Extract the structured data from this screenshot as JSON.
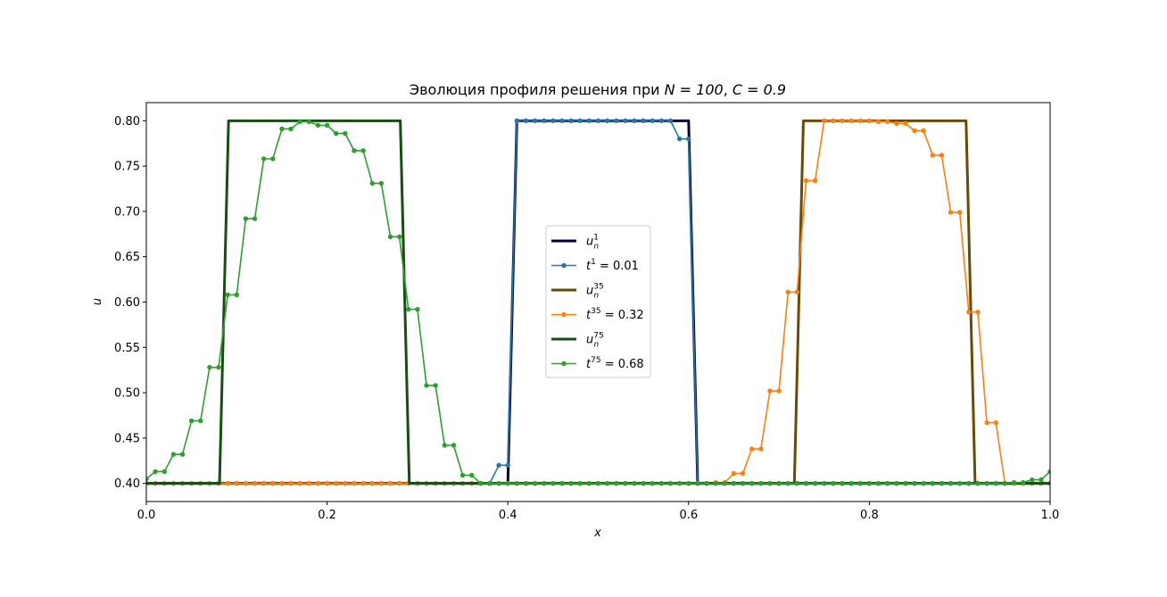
{
  "chart_data": {
    "type": "line",
    "title_prefix": "Эволюция профиля решения при ",
    "title_n": "N = 100",
    "title_sep": ", ",
    "title_c": "C = 0.9",
    "xlabel": "x",
    "ylabel": "u",
    "xlim": [
      0,
      1
    ],
    "ylim": [
      0.38,
      0.82
    ],
    "xticks": [
      0,
      0.2,
      0.4,
      0.6,
      0.8,
      1.0
    ],
    "xtick_labels": [
      "0.0",
      "0.2",
      "0.4",
      "0.6",
      "0.8",
      "1.0"
    ],
    "yticks": [
      0.4,
      0.45,
      0.5,
      0.55,
      0.6,
      0.65,
      0.7,
      0.75,
      0.8
    ],
    "ytick_labels": [
      "0.40",
      "0.45",
      "0.50",
      "0.55",
      "0.60",
      "0.65",
      "0.70",
      "0.75",
      "0.80"
    ],
    "grid": false,
    "legend_position": "center",
    "series": [
      {
        "key": "u1",
        "label_base": "u",
        "label_sub": "n",
        "label_sup": "1",
        "label_rest": "",
        "color": "#000033",
        "marker": false,
        "x": [
          0,
          0.4,
          0.41,
          0.6,
          0.61,
          1.0
        ],
        "y": [
          0.4,
          0.4,
          0.8,
          0.8,
          0.4,
          0.4
        ]
      },
      {
        "key": "t1",
        "label_base": "t",
        "label_sub": "",
        "label_sup": "1",
        "label_rest": " = 0.01",
        "color": "#1f77b4",
        "marker": true,
        "x": [
          0.0,
          0.01,
          0.02,
          0.03,
          0.04,
          0.05,
          0.06,
          0.07,
          0.08,
          0.09,
          0.1,
          0.11,
          0.12,
          0.13,
          0.14,
          0.15,
          0.16,
          0.17,
          0.18,
          0.19,
          0.2,
          0.21,
          0.22,
          0.23,
          0.24,
          0.25,
          0.26,
          0.27,
          0.28,
          0.29,
          0.3,
          0.31,
          0.32,
          0.33,
          0.34,
          0.35,
          0.36,
          0.37,
          0.38,
          0.39,
          0.4,
          0.41,
          0.42,
          0.43,
          0.44,
          0.45,
          0.46,
          0.47,
          0.48,
          0.49,
          0.5,
          0.51,
          0.52,
          0.53,
          0.54,
          0.55,
          0.56,
          0.57,
          0.58,
          0.59,
          0.6,
          0.61,
          0.62,
          0.63,
          0.64,
          0.65,
          0.66,
          0.67,
          0.68,
          0.69,
          0.7,
          0.71,
          0.72,
          0.73,
          0.74,
          0.75,
          0.76,
          0.77,
          0.78,
          0.79,
          0.8,
          0.81,
          0.82,
          0.83,
          0.84,
          0.85,
          0.86,
          0.87,
          0.88,
          0.89,
          0.9,
          0.91,
          0.92,
          0.93,
          0.94,
          0.95,
          0.96,
          0.97,
          0.98,
          0.99,
          1.0
        ],
        "y": [
          0.4,
          0.4,
          0.4,
          0.4,
          0.4,
          0.4,
          0.4,
          0.4,
          0.4,
          0.4,
          0.4,
          0.4,
          0.4,
          0.4,
          0.4,
          0.4,
          0.4,
          0.4,
          0.4,
          0.4,
          0.4,
          0.4,
          0.4,
          0.4,
          0.4,
          0.4,
          0.4,
          0.4,
          0.4,
          0.4,
          0.4,
          0.4,
          0.4,
          0.4,
          0.4,
          0.4,
          0.4,
          0.4,
          0.4,
          0.42,
          0.42,
          0.8,
          0.8,
          0.8,
          0.8,
          0.8,
          0.8,
          0.8,
          0.8,
          0.8,
          0.8,
          0.8,
          0.8,
          0.8,
          0.8,
          0.8,
          0.8,
          0.8,
          0.8,
          0.78,
          0.78,
          0.4,
          0.4,
          0.4,
          0.4,
          0.4,
          0.4,
          0.4,
          0.4,
          0.4,
          0.4,
          0.4,
          0.4,
          0.4,
          0.4,
          0.4,
          0.4,
          0.4,
          0.4,
          0.4,
          0.4,
          0.4,
          0.4,
          0.4,
          0.4,
          0.4,
          0.4,
          0.4,
          0.4,
          0.4,
          0.4,
          0.4,
          0.4,
          0.4,
          0.4,
          0.4,
          0.4,
          0.4,
          0.4,
          0.4,
          0.4
        ]
      },
      {
        "key": "u35",
        "label_base": "u",
        "label_sub": "n",
        "label_sup": "35",
        "label_rest": "",
        "color": "#6b4a05",
        "marker": false,
        "x": [
          0,
          0.717,
          0.727,
          0.907,
          0.917,
          1.0
        ],
        "y": [
          0.4,
          0.4,
          0.8,
          0.8,
          0.4,
          0.4
        ]
      },
      {
        "key": "t35",
        "label_base": "t",
        "label_sub": "",
        "label_sup": "35",
        "label_rest": " = 0.32",
        "color": "#ff7f0e",
        "marker": true,
        "x": [
          0.0,
          0.01,
          0.02,
          0.03,
          0.04,
          0.05,
          0.06,
          0.07,
          0.08,
          0.09,
          0.1,
          0.11,
          0.12,
          0.13,
          0.14,
          0.15,
          0.16,
          0.17,
          0.18,
          0.19,
          0.2,
          0.21,
          0.22,
          0.23,
          0.24,
          0.25,
          0.26,
          0.27,
          0.28,
          0.29,
          0.3,
          0.31,
          0.32,
          0.33,
          0.34,
          0.35,
          0.36,
          0.37,
          0.38,
          0.39,
          0.4,
          0.41,
          0.42,
          0.43,
          0.44,
          0.45,
          0.46,
          0.47,
          0.48,
          0.49,
          0.5,
          0.51,
          0.52,
          0.53,
          0.54,
          0.55,
          0.56,
          0.57,
          0.58,
          0.59,
          0.6,
          0.61,
          0.62,
          0.63,
          0.64,
          0.65,
          0.66,
          0.67,
          0.68,
          0.69,
          0.7,
          0.71,
          0.72,
          0.73,
          0.74,
          0.75,
          0.76,
          0.77,
          0.78,
          0.79,
          0.8,
          0.81,
          0.82,
          0.83,
          0.84,
          0.85,
          0.86,
          0.87,
          0.88,
          0.89,
          0.9,
          0.91,
          0.92,
          0.93,
          0.94,
          0.95,
          0.96,
          0.97,
          0.98,
          0.99,
          1.0
        ],
        "y": [
          0.4,
          0.4,
          0.4,
          0.4,
          0.4,
          0.4,
          0.4,
          0.4,
          0.4,
          0.4,
          0.4,
          0.4,
          0.4,
          0.4,
          0.4,
          0.4,
          0.4,
          0.4,
          0.4,
          0.4,
          0.4,
          0.4,
          0.4,
          0.4,
          0.4,
          0.4,
          0.4,
          0.4,
          0.4,
          0.4,
          0.4,
          0.4,
          0.4,
          0.4,
          0.4,
          0.4,
          0.4,
          0.4,
          0.4,
          0.4,
          0.4,
          0.4,
          0.4,
          0.4,
          0.4,
          0.4,
          0.4,
          0.4,
          0.4,
          0.4,
          0.4,
          0.4,
          0.4,
          0.4,
          0.4,
          0.4,
          0.4,
          0.4,
          0.4,
          0.4,
          0.4,
          0.4,
          0.4,
          0.401,
          0.401,
          0.411,
          0.411,
          0.438,
          0.438,
          0.502,
          0.502,
          0.611,
          0.611,
          0.734,
          0.734,
          0.8,
          0.8,
          0.8,
          0.8,
          0.8,
          0.8,
          0.799,
          0.799,
          0.797,
          0.797,
          0.789,
          0.789,
          0.762,
          0.762,
          0.699,
          0.699,
          0.589,
          0.589,
          0.467,
          0.467,
          0.4,
          0.4,
          0.4,
          0.4,
          0.4,
          0.4
        ]
      },
      {
        "key": "u75",
        "label_base": "u",
        "label_sub": "n",
        "label_sup": "75",
        "label_rest": "",
        "color": "#184d14",
        "marker": false,
        "x": [
          0,
          0.081,
          0.091,
          0.281,
          0.291,
          1.0
        ],
        "y": [
          0.4,
          0.4,
          0.8,
          0.8,
          0.4,
          0.4
        ]
      },
      {
        "key": "t75",
        "label_base": "t",
        "label_sub": "",
        "label_sup": "75",
        "label_rest": " = 0.68",
        "color": "#2ca02c",
        "marker": true,
        "x": [
          0.0,
          0.01,
          0.02,
          0.03,
          0.04,
          0.05,
          0.06,
          0.07,
          0.08,
          0.09,
          0.1,
          0.11,
          0.12,
          0.13,
          0.14,
          0.15,
          0.16,
          0.17,
          0.18,
          0.19,
          0.2,
          0.21,
          0.22,
          0.23,
          0.24,
          0.25,
          0.26,
          0.27,
          0.28,
          0.29,
          0.3,
          0.31,
          0.32,
          0.33,
          0.34,
          0.35,
          0.36,
          0.37,
          0.38,
          0.39,
          0.4,
          0.41,
          0.42,
          0.43,
          0.44,
          0.45,
          0.46,
          0.47,
          0.48,
          0.49,
          0.5,
          0.51,
          0.52,
          0.53,
          0.54,
          0.55,
          0.56,
          0.57,
          0.58,
          0.59,
          0.6,
          0.61,
          0.62,
          0.63,
          0.64,
          0.65,
          0.66,
          0.67,
          0.68,
          0.69,
          0.7,
          0.71,
          0.72,
          0.73,
          0.74,
          0.75,
          0.76,
          0.77,
          0.78,
          0.79,
          0.8,
          0.81,
          0.82,
          0.83,
          0.84,
          0.85,
          0.86,
          0.87,
          0.88,
          0.89,
          0.9,
          0.91,
          0.92,
          0.93,
          0.94,
          0.95,
          0.96,
          0.97,
          0.98,
          0.99,
          1.0
        ],
        "y": [
          0.405,
          0.413,
          0.413,
          0.432,
          0.432,
          0.469,
          0.469,
          0.528,
          0.528,
          0.608,
          0.608,
          0.692,
          0.692,
          0.758,
          0.758,
          0.791,
          0.791,
          0.799,
          0.799,
          0.795,
          0.795,
          0.786,
          0.786,
          0.767,
          0.767,
          0.731,
          0.731,
          0.672,
          0.672,
          0.592,
          0.592,
          0.508,
          0.508,
          0.442,
          0.442,
          0.409,
          0.409,
          0.4,
          0.4,
          0.4,
          0.4,
          0.4,
          0.4,
          0.4,
          0.4,
          0.4,
          0.4,
          0.4,
          0.4,
          0.4,
          0.4,
          0.4,
          0.4,
          0.4,
          0.4,
          0.4,
          0.4,
          0.4,
          0.4,
          0.4,
          0.4,
          0.4,
          0.4,
          0.4,
          0.4,
          0.4,
          0.4,
          0.4,
          0.4,
          0.4,
          0.4,
          0.4,
          0.4,
          0.4,
          0.4,
          0.4,
          0.4,
          0.4,
          0.4,
          0.4,
          0.4,
          0.4,
          0.4,
          0.4,
          0.4,
          0.4,
          0.4,
          0.4,
          0.4,
          0.4,
          0.4,
          0.4,
          0.4,
          0.4,
          0.4,
          0.4,
          0.401,
          0.401,
          0.404,
          0.404,
          0.413
        ]
      }
    ]
  }
}
